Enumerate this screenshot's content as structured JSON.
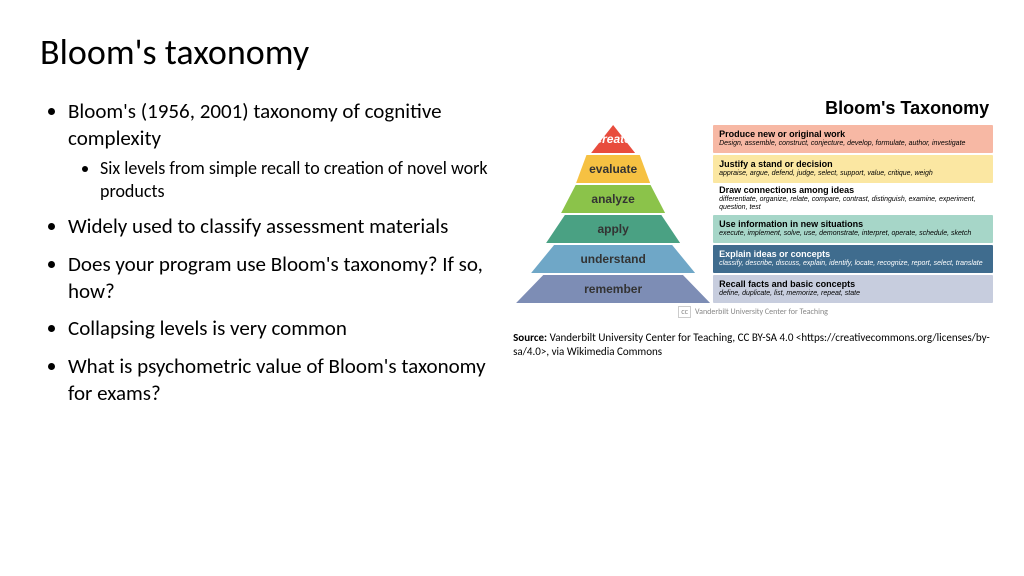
{
  "title": "Bloom's taxonomy",
  "bullets": [
    {
      "text": "Bloom's (1956, 2001) taxonomy of cognitive complexity",
      "sub": [
        "Six levels from simple recall to creation of novel work products"
      ]
    },
    {
      "text": "Widely used to classify assessment materials"
    },
    {
      "text": "Does your program use Bloom's taxonomy? If so, how?"
    },
    {
      "text": "Collapsing levels is very common"
    },
    {
      "text": "What is psychometric value of Bloom's taxonomy for exams?"
    }
  ],
  "graphic": {
    "title": "Bloom's Taxonomy",
    "levels": [
      {
        "name": "create",
        "band_color": "#e84c3d",
        "band_width": 44,
        "shape": "top",
        "desc_bg": "#f7b8a4",
        "desc_title": "Produce new or original work",
        "desc_verbs": "Design, assemble, construct, conjecture, develop, formulate, author, investigate",
        "label_color": "#ffffff",
        "label_weight": "700",
        "label_style": "italic"
      },
      {
        "name": "evaluate",
        "band_color": "#f6c142",
        "band_width": 74,
        "shape": "mid",
        "desc_bg": "#fbe7a2",
        "desc_title": "Justify a stand or decision",
        "desc_verbs": "appraise, argue, defend, judge, select, support, value, critique, weigh",
        "label_color": "#333333",
        "label_weight": "700",
        "label_style": "normal"
      },
      {
        "name": "analyze",
        "band_color": "#8bc34a",
        "band_width": 104,
        "shape": "mid",
        "desc_bg": "#ffffff",
        "desc_title": "Draw connections among ideas",
        "desc_verbs": "differentiate, organize, relate, compare, contrast, distinguish, examine, experiment, question, test",
        "label_color": "#333333",
        "label_weight": "700",
        "label_style": "normal"
      },
      {
        "name": "apply",
        "band_color": "#4aa183",
        "band_width": 134,
        "shape": "mid",
        "desc_bg": "#a6d6c8",
        "desc_title": "Use information in new situations",
        "desc_verbs": "execute, implement, solve, use, demonstrate, interpret, operate, schedule, sketch",
        "label_color": "#333333",
        "label_weight": "700",
        "label_style": "normal"
      },
      {
        "name": "understand",
        "band_color": "#6fa7c7",
        "band_width": 164,
        "shape": "mid",
        "desc_bg": "#3f6c8e",
        "desc_title": "Explain ideas or concepts",
        "desc_verbs": "classify, describe, discuss, explain, identify, locate, recognize, report, select, translate",
        "label_color": "#333333",
        "label_weight": "700",
        "label_style": "normal",
        "desc_fg": "#ffffff"
      },
      {
        "name": "remember",
        "band_color": "#7d8db5",
        "band_width": 194,
        "shape": "mid",
        "desc_bg": "#c7cdde",
        "desc_title": "Recall facts and basic concepts",
        "desc_verbs": "define, duplicate, list, memorize, repeat, state",
        "label_color": "#333333",
        "label_weight": "700",
        "label_style": "normal"
      }
    ],
    "cc_attrib": "Vanderbilt University Center for Teaching"
  },
  "source": {
    "label": "Source:",
    "text": "Vanderbilt University Center for Teaching, CC BY-SA 4.0 <https://creativecommons.org/licenses/by-sa/4.0>, via Wikimedia Commons"
  }
}
